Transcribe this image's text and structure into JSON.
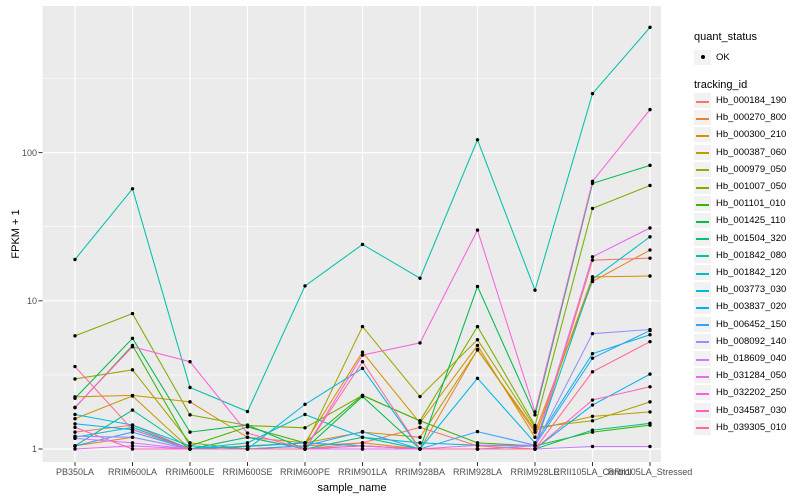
{
  "legend": {
    "quant_status_title": "quant_status",
    "quant_status_items": [
      "OK"
    ],
    "tracking_id_title": "tracking_id"
  },
  "panel": {
    "background": "#EBEBEB",
    "gridline_color": "#FFFFFF",
    "point_color": "#000000"
  },
  "chart_data": {
    "type": "line",
    "title": "",
    "xlabel": "sample_name",
    "ylabel": "FPKM + 1",
    "y_scale": "log10",
    "y_ticks": [
      1,
      10,
      100
    ],
    "y_tick_labels": [
      "1",
      "10",
      "100"
    ],
    "grid": true,
    "legend_position": "right",
    "point_shape": "filled-black-circle",
    "categories": [
      "PB350LA",
      "RRIM600LA",
      "RRIM600LE",
      "RRIM600SE",
      "RRIM600PE",
      "RRIM901LA",
      "RRIM928BA",
      "RRIM928LA",
      "RRIM928LE",
      "RRII105LA_Control",
      "RRII105LA_Stressed"
    ],
    "series": [
      {
        "name": "Hb_000184_190",
        "color": "#F8766D",
        "values": [
          1.3,
          1.45,
          1.0,
          1.0,
          1.05,
          1.1,
          1.4,
          1.05,
          1.0,
          18.8,
          19.4
        ]
      },
      {
        "name": "Hb_000270_800",
        "color": "#EA8331",
        "values": [
          1.05,
          1.2,
          1.0,
          1.2,
          1.0,
          1.1,
          1.0,
          4.7,
          1.3,
          13.5,
          22.0
        ]
      },
      {
        "name": "Hb_000300_210",
        "color": "#D89000",
        "values": [
          2.25,
          2.3,
          2.08,
          1.2,
          1.1,
          4.5,
          1.5,
          5.0,
          1.2,
          14.5,
          14.7
        ]
      },
      {
        "name": "Hb_000387_060",
        "color": "#C09B00",
        "values": [
          1.6,
          2.28,
          1.0,
          1.05,
          1.1,
          1.3,
          1.2,
          4.66,
          1.35,
          1.66,
          1.78
        ]
      },
      {
        "name": "Hb_000979_050",
        "color": "#A3A500",
        "values": [
          2.97,
          3.42,
          1.1,
          1.0,
          1.05,
          6.7,
          2.26,
          5.46,
          1.4,
          1.55,
          2.08
        ]
      },
      {
        "name": "Hb_001007_050",
        "color": "#7CAE00",
        "values": [
          5.8,
          8.2,
          1.7,
          1.44,
          1.39,
          2.3,
          1.55,
          6.7,
          1.44,
          42.0,
          60.0
        ]
      },
      {
        "name": "Hb_001101_010",
        "color": "#39B600",
        "values": [
          1.9,
          5.0,
          1.05,
          1.41,
          1.1,
          2.3,
          1.55,
          1.1,
          1.05,
          1.3,
          1.45
        ]
      },
      {
        "name": "Hb_001425_110",
        "color": "#00BB4E",
        "values": [
          2.2,
          5.58,
          1.3,
          1.45,
          1.0,
          2.26,
          1.0,
          12.5,
          1.7,
          62.0,
          82.0
        ]
      },
      {
        "name": "Hb_001504_320",
        "color": "#00C087",
        "values": [
          1.05,
          1.83,
          1.0,
          1.2,
          1.0,
          1.2,
          1.0,
          1.0,
          1.0,
          1.34,
          1.49
        ]
      },
      {
        "name": "Hb_001842_080",
        "color": "#00C1AB",
        "values": [
          19.0,
          57.0,
          2.6,
          1.79,
          12.6,
          24.0,
          14.2,
          122,
          11.8,
          250,
          700
        ]
      },
      {
        "name": "Hb_001842_120",
        "color": "#00BFC4",
        "values": [
          1.2,
          1.4,
          1.0,
          1.1,
          1.71,
          1.2,
          1.1,
          1.06,
          1.05,
          14.0,
          27.0
        ]
      },
      {
        "name": "Hb_003773_030",
        "color": "#00BAE0",
        "values": [
          1.71,
          1.45,
          1.05,
          1.0,
          2.0,
          3.5,
          1.0,
          3.0,
          1.1,
          4.4,
          5.9
        ]
      },
      {
        "name": "Hb_003837_020",
        "color": "#00B0F6",
        "values": [
          1.48,
          1.35,
          1.0,
          1.04,
          1.1,
          1.05,
          1.0,
          1.0,
          1.0,
          1.98,
          3.2
        ]
      },
      {
        "name": "Hb_006452_150",
        "color": "#35A2FF",
        "values": [
          1.05,
          1.3,
          1.0,
          1.0,
          1.05,
          1.31,
          1.0,
          1.31,
          1.06,
          4.1,
          6.3
        ]
      },
      {
        "name": "Hb_008092_140",
        "color": "#9590FF",
        "values": [
          1.22,
          1.2,
          1.0,
          1.0,
          1.0,
          1.05,
          1.0,
          1.0,
          1.05,
          6.0,
          6.4
        ]
      },
      {
        "name": "Hb_018609_040",
        "color": "#C77CFF",
        "values": [
          1.18,
          1.1,
          1.0,
          1.0,
          1.0,
          1.0,
          1.0,
          1.0,
          1.0,
          1.04,
          1.04
        ]
      },
      {
        "name": "Hb_031284_050",
        "color": "#E76BF3",
        "values": [
          1.0,
          1.05,
          1.0,
          1.0,
          1.0,
          1.0,
          1.0,
          1.06,
          1.06,
          19.8,
          31.0
        ]
      },
      {
        "name": "Hb_032202_250",
        "color": "#FA62DB",
        "values": [
          1.91,
          4.9,
          3.88,
          1.28,
          1.0,
          4.3,
          5.2,
          30.0,
          1.78,
          64.0,
          195
        ]
      },
      {
        "name": "Hb_034587_030",
        "color": "#FF62BC",
        "values": [
          1.4,
          1.0,
          1.0,
          1.0,
          1.0,
          1.05,
          1.0,
          1.0,
          1.0,
          2.14,
          2.63
        ]
      },
      {
        "name": "Hb_039305_010",
        "color": "#FF6A98",
        "values": [
          3.6,
          1.35,
          1.0,
          1.0,
          1.0,
          3.88,
          1.0,
          1.0,
          1.0,
          3.32,
          5.3
        ]
      }
    ]
  }
}
